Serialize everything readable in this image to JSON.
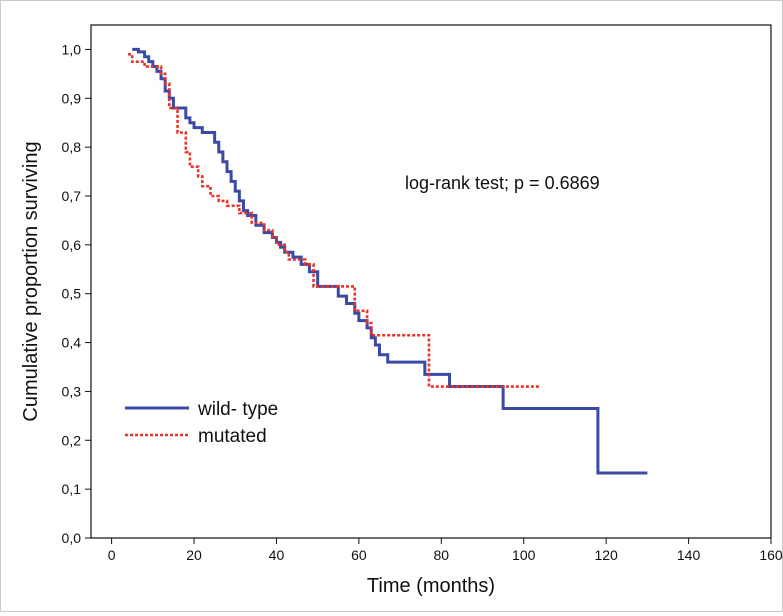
{
  "chart_data": {
    "type": "line",
    "subtype": "kaplan-meier step",
    "title": "",
    "xlabel": "Time (months)",
    "ylabel": "Cumulative proportion surviving",
    "xlim": [
      -5,
      160
    ],
    "ylim": [
      0,
      1.05
    ],
    "x_ticks": [
      0,
      20,
      40,
      60,
      80,
      100,
      120,
      140,
      160
    ],
    "x_tick_labels": [
      "0",
      "20",
      "40",
      "60",
      "80",
      "100",
      "120",
      "140",
      "160"
    ],
    "y_ticks": [
      0,
      0.1,
      0.2,
      0.3,
      0.4,
      0.5,
      0.6,
      0.7,
      0.8,
      0.9,
      1.0
    ],
    "y_tick_labels": [
      "0,0",
      "0,1",
      "0,2",
      "0,3",
      "0,4",
      "0,5",
      "0,6",
      "0,7",
      "0,8",
      "0,9",
      "1,0"
    ],
    "grid": false,
    "legend_position": "bottom-left",
    "annotation": "log-rank test; p = 0.6869",
    "series": [
      {
        "name": "wild- type",
        "color": "#3b4aa3",
        "dash": "solid",
        "points": [
          [
            5,
            1.0
          ],
          [
            6.5,
            0.995
          ],
          [
            8,
            0.985
          ],
          [
            9,
            0.975
          ],
          [
            10,
            0.965
          ],
          [
            11,
            0.955
          ],
          [
            12,
            0.94
          ],
          [
            13,
            0.915
          ],
          [
            14,
            0.9
          ],
          [
            15,
            0.88
          ],
          [
            18,
            0.86
          ],
          [
            19,
            0.85
          ],
          [
            20,
            0.84
          ],
          [
            22,
            0.83
          ],
          [
            25,
            0.81
          ],
          [
            26,
            0.79
          ],
          [
            27,
            0.77
          ],
          [
            28,
            0.75
          ],
          [
            29,
            0.73
          ],
          [
            30,
            0.71
          ],
          [
            31,
            0.69
          ],
          [
            32,
            0.67
          ],
          [
            33,
            0.66
          ],
          [
            35,
            0.64
          ],
          [
            37,
            0.625
          ],
          [
            39,
            0.615
          ],
          [
            40,
            0.605
          ],
          [
            41,
            0.595
          ],
          [
            42,
            0.585
          ],
          [
            44,
            0.575
          ],
          [
            46,
            0.56
          ],
          [
            48,
            0.545
          ],
          [
            50,
            0.515
          ],
          [
            55,
            0.495
          ],
          [
            57,
            0.48
          ],
          [
            59,
            0.46
          ],
          [
            60,
            0.445
          ],
          [
            62,
            0.43
          ],
          [
            63,
            0.41
          ],
          [
            64,
            0.395
          ],
          [
            65,
            0.375
          ],
          [
            67,
            0.36
          ],
          [
            69,
            0.36
          ],
          [
            76,
            0.335
          ],
          [
            82,
            0.31
          ],
          [
            95,
            0.265
          ],
          [
            118,
            0.133
          ],
          [
            130,
            0.133
          ]
        ]
      },
      {
        "name": "mutated",
        "color": "#e8332a",
        "dash": "dotted",
        "points": [
          [
            4,
            0.99
          ],
          [
            5,
            0.975
          ],
          [
            8,
            0.965
          ],
          [
            12,
            0.95
          ],
          [
            13,
            0.93
          ],
          [
            14,
            0.88
          ],
          [
            16,
            0.83
          ],
          [
            18,
            0.79
          ],
          [
            19,
            0.76
          ],
          [
            21,
            0.74
          ],
          [
            22,
            0.72
          ],
          [
            24,
            0.7
          ],
          [
            26,
            0.69
          ],
          [
            28,
            0.68
          ],
          [
            31,
            0.665
          ],
          [
            34,
            0.645
          ],
          [
            37,
            0.63
          ],
          [
            39,
            0.615
          ],
          [
            40,
            0.6
          ],
          [
            42,
            0.585
          ],
          [
            43,
            0.57
          ],
          [
            46,
            0.57
          ],
          [
            47,
            0.56
          ],
          [
            49,
            0.515
          ],
          [
            59,
            0.465
          ],
          [
            62,
            0.44
          ],
          [
            63,
            0.415
          ],
          [
            77,
            0.31
          ],
          [
            104,
            0.31
          ]
        ]
      }
    ]
  }
}
